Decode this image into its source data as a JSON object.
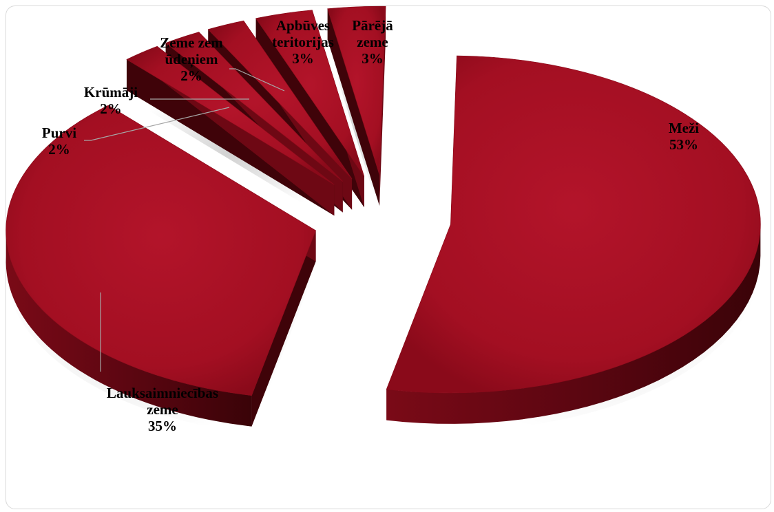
{
  "chart_data": {
    "type": "pie",
    "style": "3d-exploded",
    "categories": [
      "Meži",
      "Lauksaimniecības zeme",
      "Purvi",
      "Krūmāji",
      "Zeme zem ūdeņiem",
      "Apbūves teritorijas",
      "Pārējā zeme"
    ],
    "values": [
      53,
      35,
      2,
      2,
      2,
      3,
      3
    ],
    "data_labels": [
      "53%",
      "35%",
      "2%",
      "2%",
      "2%",
      "3%",
      "3%"
    ],
    "title": "",
    "legend": "none",
    "colors": {
      "top": "#a50f22",
      "side": "#6e0814",
      "side_dark": "#3f0309"
    }
  }
}
